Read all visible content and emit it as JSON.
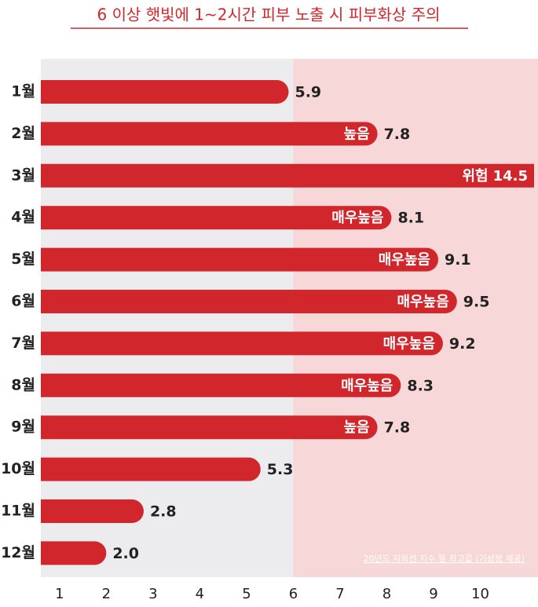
{
  "chart_data": {
    "type": "barh",
    "title": "6 이상 햇빛에 1~2시간 피부 노출 시 피부화상 주의",
    "categories": [
      "1월",
      "2월",
      "3월",
      "4월",
      "5월",
      "6월",
      "7월",
      "8월",
      "9월",
      "10월",
      "11월",
      "12월"
    ],
    "values": [
      5.9,
      7.8,
      14.5,
      8.1,
      9.1,
      9.5,
      9.2,
      8.3,
      7.8,
      5.3,
      2.8,
      2.0
    ],
    "value_labels": [
      "5.9",
      "7.8",
      "14.5",
      "8.1",
      "9.1",
      "9.5",
      "9.2",
      "8.3",
      "7.8",
      "5.3",
      "2.8",
      "2.0"
    ],
    "levels": [
      null,
      "높음",
      "위험",
      "매우높음",
      "매우높음",
      "매우높음",
      "매우높음",
      "매우높음",
      "높음",
      null,
      null,
      null
    ],
    "color": "#d0262c",
    "threshold": 6,
    "xlim": [
      0.6,
      11.15
    ],
    "xticks": [
      1,
      2,
      3,
      4,
      5,
      6,
      7,
      8,
      9,
      10
    ],
    "note": "20년도 자외선 지수 월 최고값 (기상청 제공)"
  }
}
